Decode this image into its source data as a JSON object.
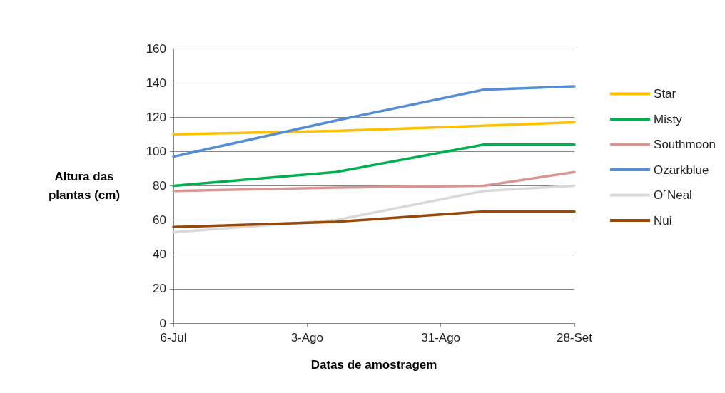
{
  "chart_data": {
    "type": "line",
    "xlabel": "Datas de amostragem",
    "ylabel": "Altura das\nplantas (cm)",
    "x": [
      "--07-06",
      "--08-09",
      "--09-09",
      "--09-28"
    ],
    "xlim": [
      "--07-06",
      "--09-28"
    ],
    "xticks": [
      {
        "value": "--07-06",
        "label": "6-Jul"
      },
      {
        "value": "--08-03",
        "label": "3-Ago"
      },
      {
        "value": "--08-31",
        "label": "31-Ago"
      },
      {
        "value": "--09-28",
        "label": "28-Set"
      }
    ],
    "ylim": [
      0,
      160
    ],
    "yticks": [
      0,
      20,
      40,
      60,
      80,
      100,
      120,
      140,
      160
    ],
    "grid": "y",
    "legend": "right",
    "marker": "none",
    "series": [
      {
        "name": "Star",
        "color": "#ffc000",
        "values": [
          110,
          112,
          115,
          117
        ]
      },
      {
        "name": "Misty",
        "color": "#00b050",
        "values": [
          80,
          88,
          104,
          104
        ]
      },
      {
        "name": "Southmoon",
        "color": "#d99594",
        "values": [
          77,
          79,
          80,
          88
        ]
      },
      {
        "name": "Ozarkblue",
        "color": "#558ed5",
        "values": [
          97,
          118,
          136,
          138
        ]
      },
      {
        "name": "O´Neal",
        "color": "#d9d9d9",
        "values": [
          53,
          60,
          77,
          80
        ]
      },
      {
        "name": "Nui",
        "color": "#984807",
        "values": [
          56,
          59,
          65,
          65
        ]
      }
    ]
  }
}
